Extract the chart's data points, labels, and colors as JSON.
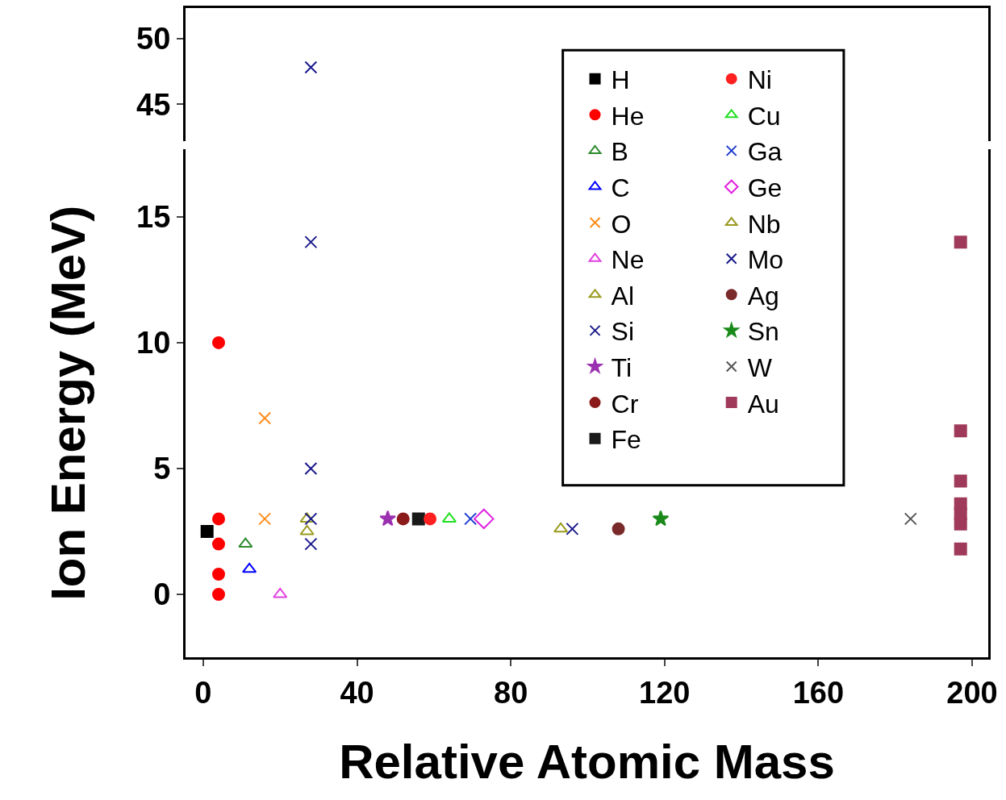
{
  "chart_data": [
    {
      "type": "scatter",
      "xlim": [
        -4.6,
        204.2
      ],
      "xticks": [
        0,
        40,
        80,
        120,
        160,
        200
      ],
      "ylim": [
        42.2,
        52.3
      ],
      "yticks": [
        45,
        50
      ],
      "tick_labels": "y",
      "legend": false,
      "grid": false,
      "series": [
        {
          "color": "#1a1a8c",
          "marker": "cross",
          "x": [
            28
          ],
          "values": [
            47.8
          ]
        }
      ]
    },
    {
      "type": "scatter",
      "xlabel": "Relative Atomic Mass",
      "ylabel": "Ion Energy (MeV)",
      "xlim": [
        -4.6,
        204.2
      ],
      "xticks": [
        0,
        40,
        80,
        120,
        160,
        200
      ],
      "ylim": [
        -2.5,
        17.7
      ],
      "yticks": [
        0,
        5,
        10,
        15
      ],
      "legend": "top right",
      "grid": false,
      "series": [
        {
          "name": "H",
          "color": "#000000",
          "marker": "square",
          "x": [
            1
          ],
          "values": [
            2.5
          ]
        },
        {
          "name": "He",
          "color": "#ff0000",
          "marker": "circle",
          "x": [
            4,
            4,
            4,
            4,
            4
          ],
          "values": [
            10,
            3,
            2,
            0.8,
            0
          ]
        },
        {
          "name": "B",
          "color": "#2e8b2e",
          "marker": "triangle",
          "x": [
            11
          ],
          "values": [
            2
          ]
        },
        {
          "name": "C",
          "color": "#0000ff",
          "marker": "triangle",
          "x": [
            12
          ],
          "values": [
            1
          ]
        },
        {
          "name": "O",
          "color": "#ff8c1a",
          "marker": "cross",
          "x": [
            16,
            16
          ],
          "values": [
            7,
            3
          ]
        },
        {
          "name": "Ne",
          "color": "#e040e0",
          "marker": "triangle",
          "x": [
            20
          ],
          "values": [
            0
          ]
        },
        {
          "name": "Al",
          "color": "#9a9a20",
          "marker": "triangle",
          "x": [
            27,
            27
          ],
          "values": [
            3,
            2.5
          ]
        },
        {
          "name": "Si",
          "color": "#1a1a8c",
          "marker": "cross",
          "x": [
            28,
            28,
            28,
            28
          ],
          "values": [
            14,
            5,
            3,
            2
          ]
        },
        {
          "name": "Ti",
          "color": "#9b30b0",
          "marker": "star",
          "x": [
            48
          ],
          "values": [
            3
          ]
        },
        {
          "name": "Cr",
          "color": "#8b1a1a",
          "marker": "circle",
          "x": [
            52
          ],
          "values": [
            3
          ]
        },
        {
          "name": "Fe",
          "color": "#1a1a1a",
          "marker": "square",
          "x": [
            56
          ],
          "values": [
            3
          ]
        },
        {
          "name": "Ni",
          "color": "#ff2020",
          "marker": "circle",
          "x": [
            59
          ],
          "values": [
            3
          ]
        },
        {
          "name": "Cu",
          "color": "#20e020",
          "marker": "triangle",
          "x": [
            64
          ],
          "values": [
            3
          ]
        },
        {
          "name": "Ga",
          "color": "#1a3ad0",
          "marker": "cross",
          "x": [
            69.5
          ],
          "values": [
            3
          ]
        },
        {
          "name": "Ge",
          "color": "#e020e0",
          "marker": "diamond",
          "x": [
            73
          ],
          "values": [
            3
          ]
        },
        {
          "name": "Nb",
          "color": "#9a9a20",
          "marker": "triangle",
          "x": [
            93
          ],
          "values": [
            2.6
          ]
        },
        {
          "name": "Mo",
          "color": "#1a1a8c",
          "marker": "cross",
          "x": [
            96
          ],
          "values": [
            2.6
          ]
        },
        {
          "name": "Ag",
          "color": "#7a2a2a",
          "marker": "circle",
          "x": [
            108
          ],
          "values": [
            2.6
          ]
        },
        {
          "name": "Sn",
          "color": "#1a8a1a",
          "marker": "star",
          "x": [
            119
          ],
          "values": [
            3
          ]
        },
        {
          "name": "W",
          "color": "#555555",
          "marker": "cross",
          "x": [
            184
          ],
          "values": [
            3
          ]
        },
        {
          "name": "Au",
          "color": "#a03a5a",
          "marker": "square",
          "x": [
            197,
            197,
            197,
            197,
            197,
            197,
            197
          ],
          "values": [
            14,
            6.5,
            4.5,
            3.6,
            3.2,
            2.8,
            1.8
          ]
        }
      ]
    }
  ]
}
